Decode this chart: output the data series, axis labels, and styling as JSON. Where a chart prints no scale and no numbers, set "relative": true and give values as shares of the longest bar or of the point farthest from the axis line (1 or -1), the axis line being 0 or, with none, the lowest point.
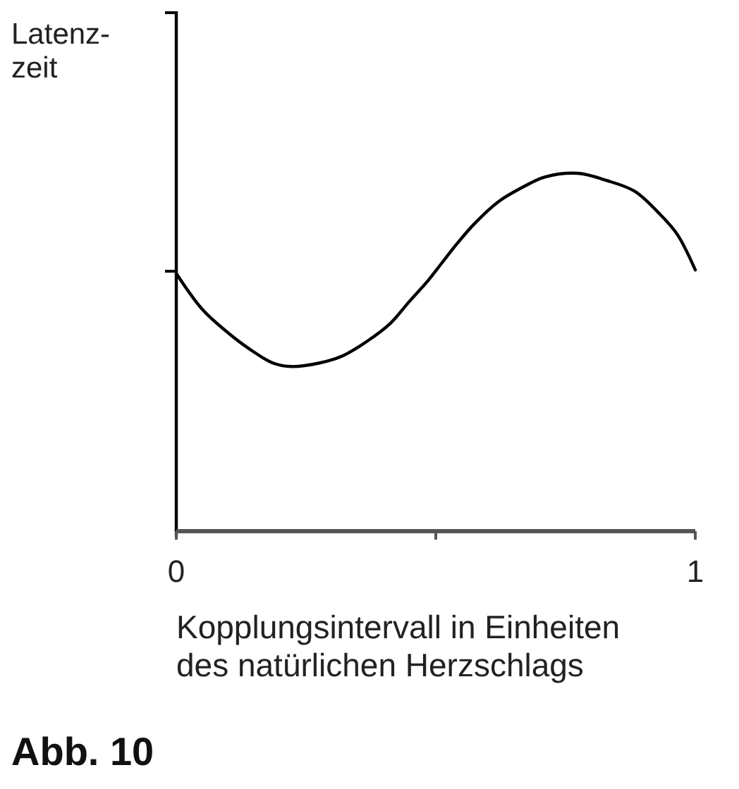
{
  "chart_data": {
    "type": "line",
    "xlabel": "Kopplungsintervall in Einheiten\ndes natürlichen Herzschlags",
    "ylabel": "Latenz-\nzeit",
    "annotations": [
      "Abb. 10"
    ],
    "relative": true,
    "xlim": [
      0,
      1
    ],
    "xticks": [
      0,
      {
        "value": 0.5,
        "label": null
      },
      1
    ],
    "series": [
      {
        "color": "#000000",
        "x": [
          0,
          0.05,
          0.095,
          0.14,
          0.186,
          0.222,
          0.276,
          0.321,
          0.367,
          0.412,
          0.448,
          0.485,
          0.512,
          0.539,
          0.575,
          0.62,
          0.666,
          0.711,
          0.774,
          0.829,
          0.883,
          0.929,
          0.965,
          1
        ],
        "values": [
          0.72,
          0.62,
          0.56,
          0.51,
          0.47,
          0.46,
          0.47,
          0.49,
          0.53,
          0.58,
          0.64,
          0.7,
          0.75,
          0.8,
          0.86,
          0.92,
          0.96,
          0.99,
          1,
          0.98,
          0.95,
          0.89,
          0.83,
          0.73
        ]
      }
    ]
  }
}
